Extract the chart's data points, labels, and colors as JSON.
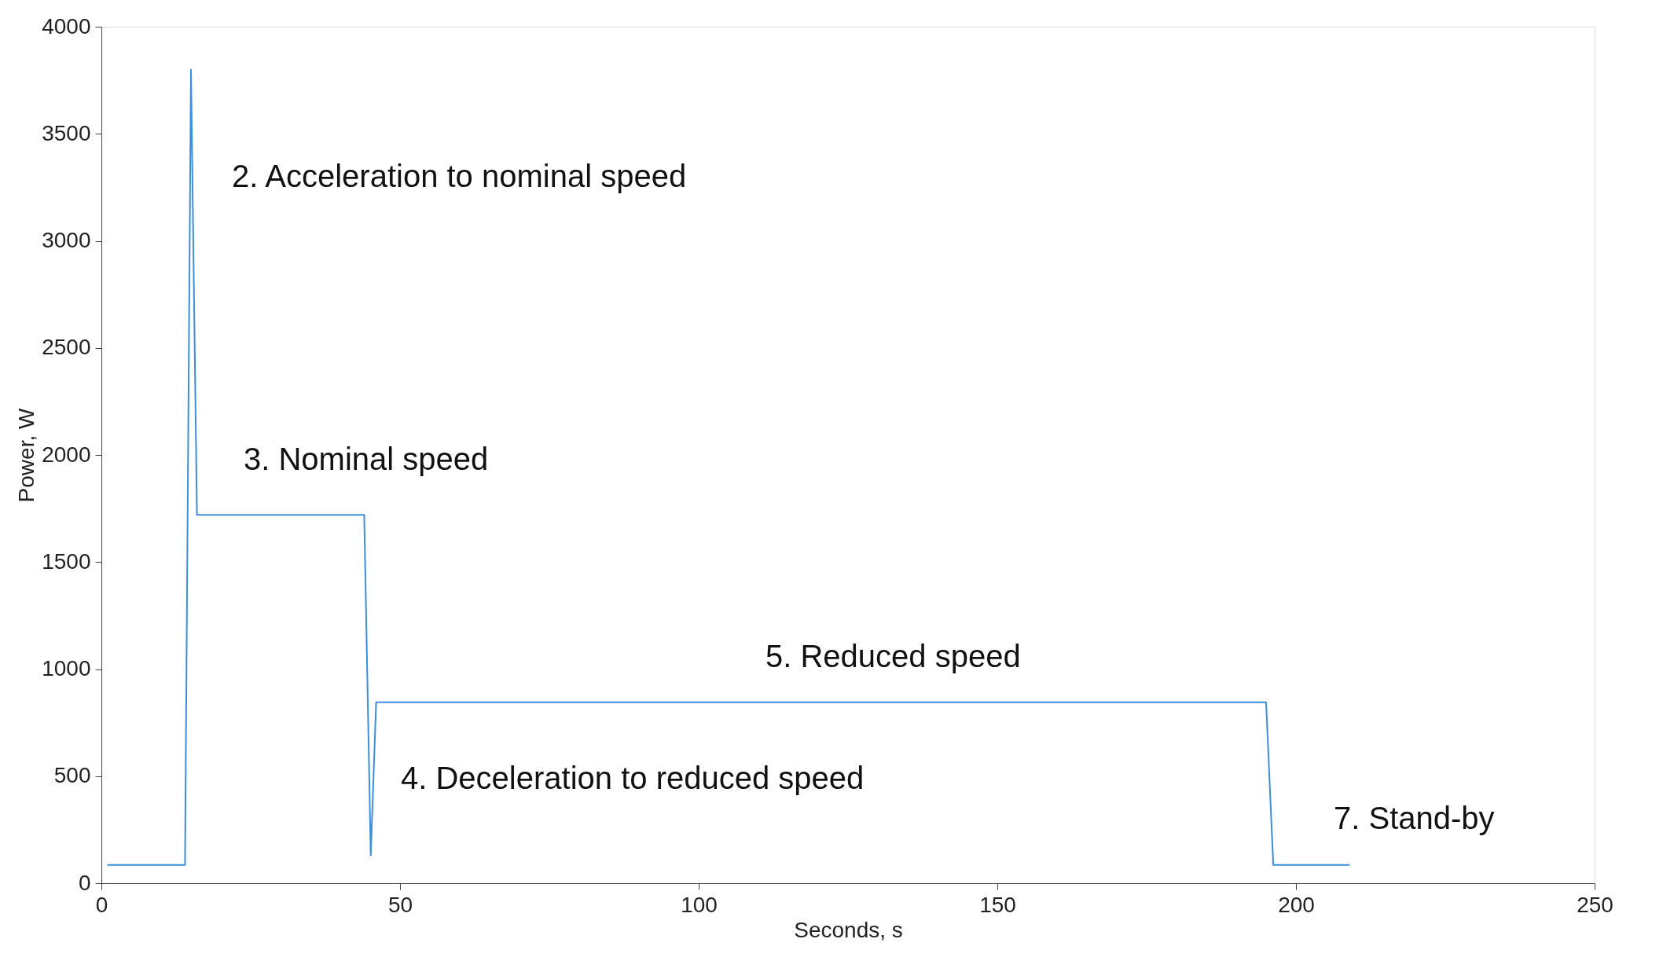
{
  "chart_data": {
    "type": "line",
    "xlabel": "Seconds, s",
    "ylabel": "Power, W",
    "series": [
      {
        "color": "#3d8fd9",
        "x": [
          1,
          14,
          15,
          16,
          44,
          45.1,
          46,
          195,
          196.2,
          209
        ],
        "values": [
          85,
          85,
          3800,
          1720,
          1720,
          130,
          845,
          845,
          85,
          85
        ]
      }
    ],
    "xlim": [
      0,
      250
    ],
    "xticks": [
      0,
      50,
      100,
      150,
      200,
      250
    ],
    "ylim": [
      0,
      4000
    ],
    "yticks": [
      0,
      500,
      1000,
      1500,
      2000,
      2500,
      3000,
      3500,
      4000
    ],
    "grid": false,
    "line_style": "solid",
    "marker": "none",
    "annotations": [
      "2. Acceleration to nominal speed",
      "3. Nominal speed",
      "4. Deceleration to reduced speed",
      "5. Reduced speed",
      "7. Stand-by"
    ]
  }
}
